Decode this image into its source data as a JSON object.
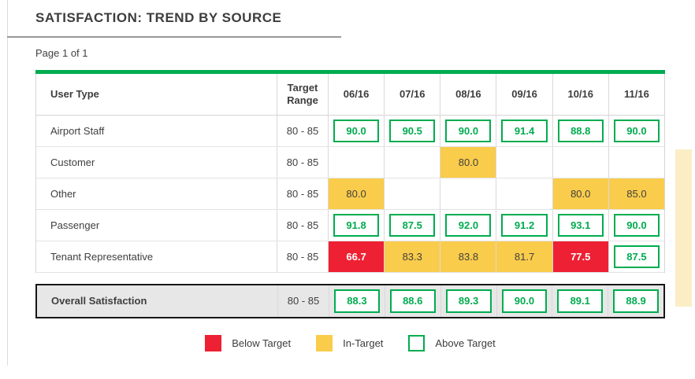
{
  "page": {
    "title": "SATISFACTION: TREND BY SOURCE",
    "pagination": "Page 1 of 1"
  },
  "colors": {
    "green": "#00AC4F",
    "red": "#EE2033",
    "yellow": "#FACC4B",
    "pale_yellow": "#FBEEC5",
    "overall_bg": "#E7E7E7"
  },
  "table": {
    "columns": [
      "User Type",
      "Target Range",
      "06/16",
      "07/16",
      "08/16",
      "09/16",
      "10/16",
      "11/16"
    ],
    "rows": [
      {
        "label": "Airport Staff",
        "target": "80 - 85",
        "cells": [
          {
            "v": "90.0",
            "s": "above"
          },
          {
            "v": "90.5",
            "s": "above"
          },
          {
            "v": "90.0",
            "s": "above"
          },
          {
            "v": "91.4",
            "s": "above"
          },
          {
            "v": "88.8",
            "s": "above"
          },
          {
            "v": "90.0",
            "s": "above"
          }
        ]
      },
      {
        "label": "Customer",
        "target": "80 - 85",
        "cells": [
          {
            "v": "",
            "s": "empty"
          },
          {
            "v": "",
            "s": "empty"
          },
          {
            "v": "80.0",
            "s": "in"
          },
          {
            "v": "",
            "s": "empty"
          },
          {
            "v": "",
            "s": "empty"
          },
          {
            "v": "",
            "s": "empty"
          }
        ]
      },
      {
        "label": "Other",
        "target": "80 - 85",
        "cells": [
          {
            "v": "80.0",
            "s": "in"
          },
          {
            "v": "",
            "s": "empty"
          },
          {
            "v": "",
            "s": "empty"
          },
          {
            "v": "",
            "s": "empty"
          },
          {
            "v": "80.0",
            "s": "in"
          },
          {
            "v": "85.0",
            "s": "in"
          }
        ]
      },
      {
        "label": "Passenger",
        "target": "80 - 85",
        "cells": [
          {
            "v": "91.8",
            "s": "above"
          },
          {
            "v": "87.5",
            "s": "above"
          },
          {
            "v": "92.0",
            "s": "above"
          },
          {
            "v": "91.2",
            "s": "above"
          },
          {
            "v": "93.1",
            "s": "above"
          },
          {
            "v": "90.0",
            "s": "above"
          }
        ]
      },
      {
        "label": "Tenant Representative",
        "target": "80 - 85",
        "cells": [
          {
            "v": "66.7",
            "s": "below"
          },
          {
            "v": "83.3",
            "s": "in"
          },
          {
            "v": "83.8",
            "s": "in"
          },
          {
            "v": "81.7",
            "s": "in"
          },
          {
            "v": "77.5",
            "s": "below"
          },
          {
            "v": "87.5",
            "s": "above"
          }
        ]
      }
    ],
    "overall": {
      "label": "Overall Satisfaction",
      "target": "80 - 85",
      "cells": [
        {
          "v": "88.3",
          "s": "above"
        },
        {
          "v": "88.6",
          "s": "above"
        },
        {
          "v": "89.3",
          "s": "above"
        },
        {
          "v": "90.0",
          "s": "above"
        },
        {
          "v": "89.1",
          "s": "above"
        },
        {
          "v": "88.9",
          "s": "above"
        }
      ]
    }
  },
  "legend": [
    {
      "label": "Below Target",
      "status": "below"
    },
    {
      "label": "In-Target",
      "status": "in"
    },
    {
      "label": "Above Target",
      "status": "above"
    }
  ]
}
